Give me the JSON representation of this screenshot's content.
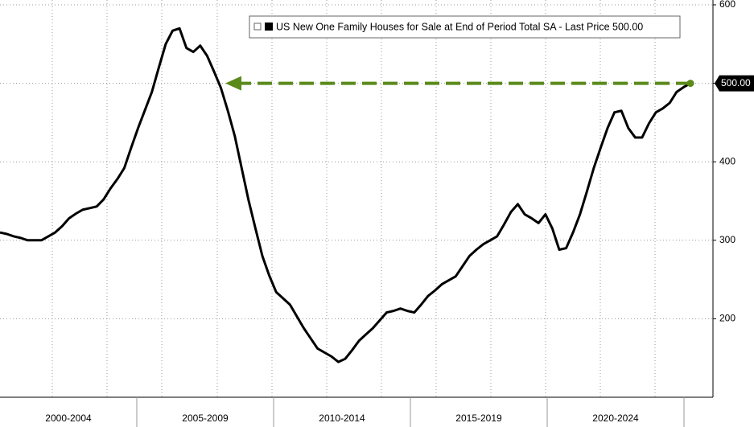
{
  "chart_data": {
    "type": "line",
    "series": [
      {
        "name": "US New One Family Houses for Sale at End of Period Total SA - Last Price 500.00",
        "color": "#000000",
        "values": [
          310,
          308,
          305,
          303,
          300,
          300,
          300,
          305,
          310,
          318,
          328,
          334,
          339,
          341,
          343,
          352,
          366,
          378,
          392,
          418,
          443,
          466,
          489,
          520,
          550,
          567,
          570,
          545,
          540,
          548,
          535,
          515,
          494,
          465,
          433,
          392,
          351,
          315,
          280,
          255,
          234,
          226,
          218,
          203,
          188,
          175,
          162,
          157,
          152,
          145,
          149,
          160,
          172,
          180,
          188,
          198,
          208,
          210,
          213,
          210,
          208,
          218,
          229,
          236,
          244,
          249,
          254,
          267,
          280,
          288,
          295,
          300,
          305,
          320,
          336,
          346,
          333,
          328,
          322,
          333,
          315,
          288,
          290,
          310,
          333,
          362,
          392,
          418,
          443,
          463,
          465,
          443,
          431,
          431,
          449,
          463,
          468,
          475,
          489,
          495,
          500
        ]
      }
    ],
    "period_labels": [
      "2000-2004",
      "2005-2009",
      "2010-2014",
      "2015-2019",
      "2020-2024"
    ],
    "last_label": "500.00",
    "arrow_color": "#5a8a1a",
    "ylim": [
      100,
      600
    ],
    "yticks": [
      200,
      300,
      400,
      500,
      600
    ],
    "grid": true
  }
}
